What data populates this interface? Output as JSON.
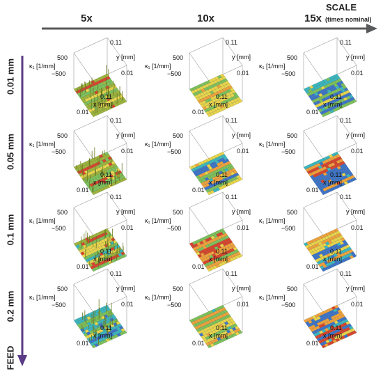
{
  "header": {
    "columns": [
      "5x",
      "10x",
      "15x"
    ],
    "scale_label": "SCALE",
    "scale_sub": "(times nominal)"
  },
  "feed": {
    "label": "FEED",
    "rows": [
      "0.01 mm",
      "0.05 mm",
      "0.1 mm",
      "0.2 mm"
    ]
  },
  "axis_labels": {
    "z_label": "κ₁ [1/mm]",
    "z_top": "500",
    "z_bottom": "−500",
    "y_label": "y [mm]",
    "x_label": "x [mm]",
    "y_top_tick": "0.11",
    "y_bottom_tick": "0.01",
    "x_right_tick": "0.11",
    "x_left_tick": "0.01"
  },
  "colors": {
    "arrow": "#58595b",
    "feed_arrow": "#5b3a86",
    "blue": "#3b74c9",
    "cyan": "#39b7bf",
    "green": "#7cc25a",
    "yellow": "#e9d64a",
    "orange": "#f0a23a",
    "red": "#d8442c",
    "olive": "#9db53a"
  },
  "plots": [
    {
      "style": "olive"
    },
    {
      "style": "yellow"
    },
    {
      "style": "cyanmix"
    },
    {
      "style": "olivespike"
    },
    {
      "style": "greenmix"
    },
    {
      "style": "orangemix"
    },
    {
      "style": "greenspike"
    },
    {
      "style": "orange"
    },
    {
      "style": "orange2"
    },
    {
      "style": "teal"
    },
    {
      "style": "bluemix"
    },
    {
      "style": "orangeblue"
    }
  ]
}
